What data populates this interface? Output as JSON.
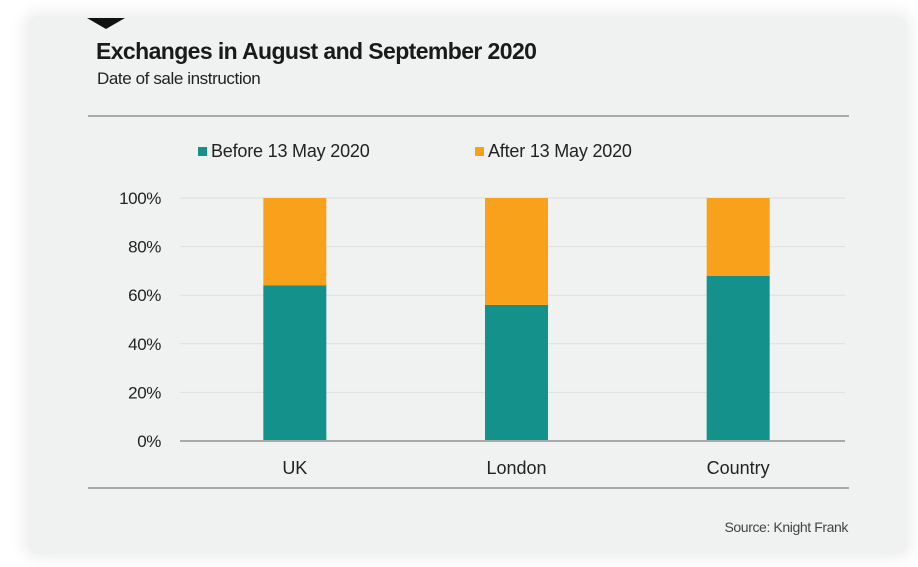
{
  "header": {
    "title": "Exchanges in August and September 2020",
    "subtitle": "Date of sale instruction"
  },
  "footer": {
    "source": "Source: Knight Frank"
  },
  "colors": {
    "before": "#13918a",
    "after": "#f9a11b",
    "grid": "#dcdfde",
    "axis": "#a7aaa9"
  },
  "chart_data": {
    "type": "bar",
    "stacked": true,
    "title": "Exchanges in August and September 2020",
    "subtitle": "Date of sale instruction",
    "xlabel": "",
    "ylabel": "",
    "categories": [
      "UK",
      "London",
      "Country"
    ],
    "series": [
      {
        "name": "Before 13 May 2020",
        "values": [
          64,
          56,
          68
        ]
      },
      {
        "name": "After 13 May 2020",
        "values": [
          36,
          44,
          32
        ]
      }
    ],
    "ylim": [
      0,
      100
    ],
    "yticks": [
      0,
      20,
      40,
      60,
      80,
      100
    ],
    "ytick_labels": [
      "0%",
      "20%",
      "40%",
      "60%",
      "80%",
      "100%"
    ],
    "grid": true,
    "legend_position": "top",
    "source": "Source: Knight Frank"
  }
}
